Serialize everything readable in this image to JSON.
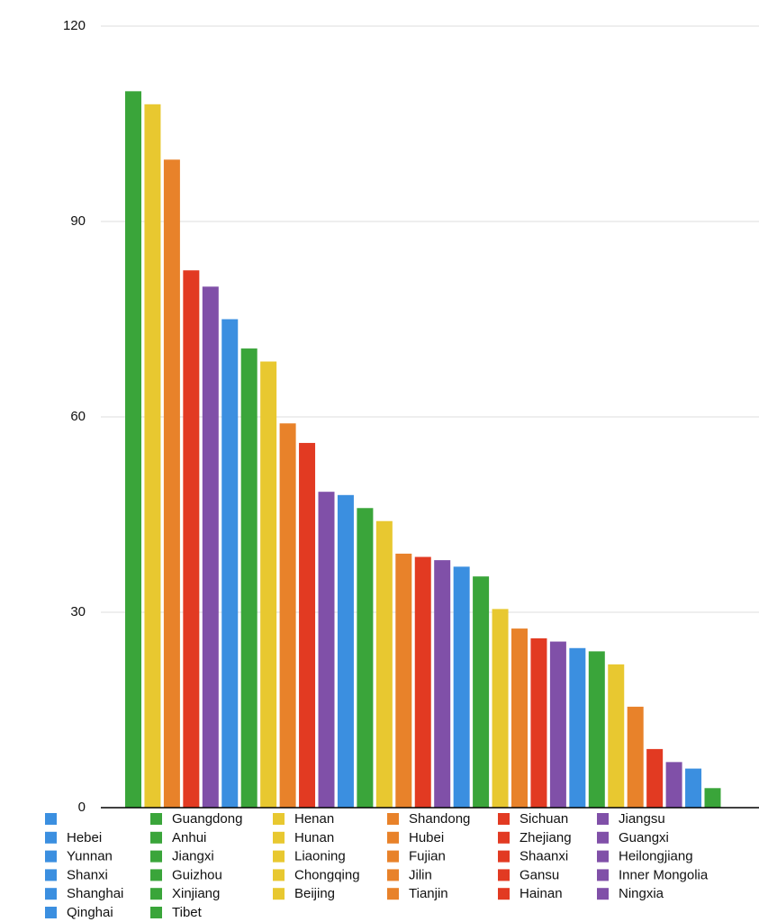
{
  "chart_data": {
    "type": "bar",
    "ylim": [
      0,
      120
    ],
    "yticks": [
      0,
      30,
      60,
      90,
      120
    ],
    "grid": true,
    "series": [
      {
        "name": null,
        "color": "#3b8fe0",
        "values": [
          null
        ]
      },
      {
        "name": "Guangdong",
        "color": "#3aa53a",
        "values": [
          110
        ]
      },
      {
        "name": "Henan",
        "color": "#e8c830",
        "values": [
          108
        ]
      },
      {
        "name": "Shandong",
        "color": "#e8822a",
        "values": [
          99.5
        ]
      },
      {
        "name": "Sichuan",
        "color": "#e23a22",
        "values": [
          82.5
        ]
      },
      {
        "name": "Jiangsu",
        "color": "#8050a8",
        "values": [
          80
        ]
      },
      {
        "name": "Hebei",
        "color": "#3b8fe0",
        "values": [
          75
        ]
      },
      {
        "name": "Anhui",
        "color": "#3aa53a",
        "values": [
          70.5
        ]
      },
      {
        "name": "Hunan",
        "color": "#e8c830",
        "values": [
          68.5
        ]
      },
      {
        "name": "Hubei",
        "color": "#e8822a",
        "values": [
          59
        ]
      },
      {
        "name": "Zhejiang",
        "color": "#e23a22",
        "values": [
          56
        ]
      },
      {
        "name": "Guangxi",
        "color": "#8050a8",
        "values": [
          48.5
        ]
      },
      {
        "name": "Yunnan",
        "color": "#3b8fe0",
        "values": [
          48
        ]
      },
      {
        "name": "Jiangxi",
        "color": "#3aa53a",
        "values": [
          46
        ]
      },
      {
        "name": "Liaoning",
        "color": "#e8c830",
        "values": [
          44
        ]
      },
      {
        "name": "Fujian",
        "color": "#e8822a",
        "values": [
          39
        ]
      },
      {
        "name": "Shaanxi",
        "color": "#e23a22",
        "values": [
          38.5
        ]
      },
      {
        "name": "Heilongjiang",
        "color": "#8050a8",
        "values": [
          38
        ]
      },
      {
        "name": "Shanxi",
        "color": "#3b8fe0",
        "values": [
          37
        ]
      },
      {
        "name": "Guizhou",
        "color": "#3aa53a",
        "values": [
          35.5
        ]
      },
      {
        "name": "Chongqing",
        "color": "#e8c830",
        "values": [
          30.5
        ]
      },
      {
        "name": "Jilin",
        "color": "#e8822a",
        "values": [
          27.5
        ]
      },
      {
        "name": "Gansu",
        "color": "#e23a22",
        "values": [
          26
        ]
      },
      {
        "name": "Inner Mongolia",
        "color": "#8050a8",
        "values": [
          25.5
        ]
      },
      {
        "name": "Shanghai",
        "color": "#3b8fe0",
        "values": [
          24.5
        ]
      },
      {
        "name": "Xinjiang",
        "color": "#3aa53a",
        "values": [
          24
        ]
      },
      {
        "name": "Beijing",
        "color": "#e8c830",
        "values": [
          22
        ]
      },
      {
        "name": "Tianjin",
        "color": "#e8822a",
        "values": [
          15.5
        ]
      },
      {
        "name": "Hainan",
        "color": "#e23a22",
        "values": [
          9
        ]
      },
      {
        "name": "Ningxia",
        "color": "#8050a8",
        "values": [
          7
        ]
      },
      {
        "name": "Qinghai",
        "color": "#3b8fe0",
        "values": [
          6
        ]
      },
      {
        "name": "Tibet",
        "color": "#3aa53a",
        "values": [
          3
        ]
      }
    ]
  }
}
